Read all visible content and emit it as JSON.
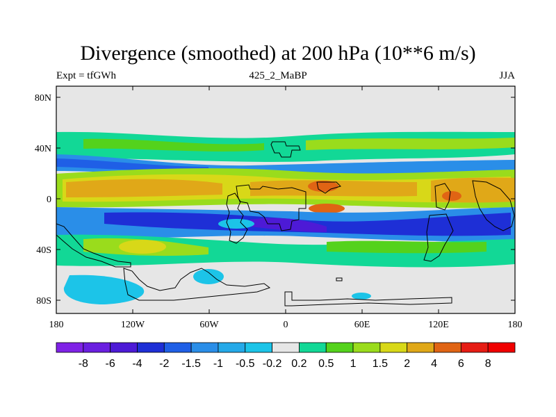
{
  "title": "Divergence (smoothed) at 200 hPa (10**6 m/s)",
  "subtitle_left": "Expt = tfGWh",
  "subtitle_center": "425_2_MaBP",
  "subtitle_right": "JJA",
  "lat_labels": [
    "80N",
    "40N",
    "0",
    "40S",
    "80S"
  ],
  "lon_labels": [
    "180",
    "120W",
    "60W",
    "0",
    "60E",
    "120E",
    "180"
  ],
  "colorbar": {
    "labels": [
      "-8",
      "-6",
      "-4",
      "-2",
      "-1.5",
      "-1",
      "-0.5",
      "-0.2",
      "0.2",
      "0.5",
      "1",
      "1.5",
      "2",
      "4",
      "6",
      "8"
    ],
    "colors": [
      "#7f22e6",
      "#6a1fe0",
      "#4d1ad6",
      "#1e2fd6",
      "#1f5fe6",
      "#2a8ee8",
      "#24a9e8",
      "#1cc4e8",
      "#e6e6e6",
      "#12d896",
      "#54d21c",
      "#9adc1c",
      "#d8d818",
      "#e0a818",
      "#e06414",
      "#e61c14",
      "#f00000"
    ]
  },
  "background_color": "#e6e6e6"
}
